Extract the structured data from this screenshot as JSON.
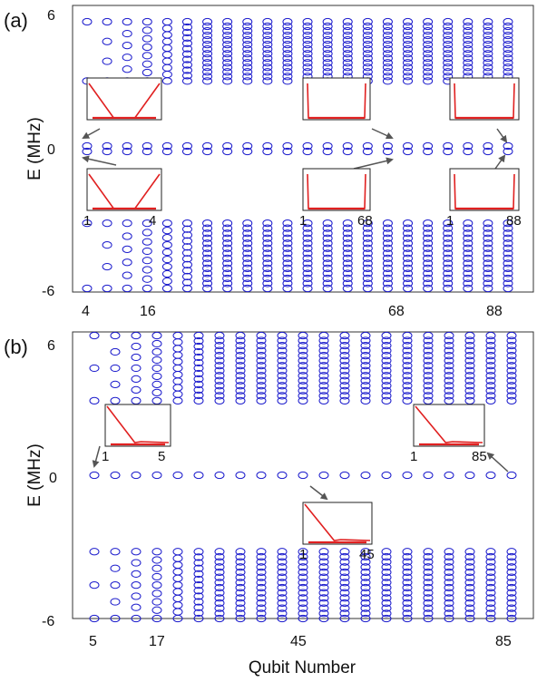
{
  "chart_data": [
    {
      "type": "scatter",
      "panel_label": "(a)",
      "ylabel": "E (MHz)",
      "xlabel": "",
      "y_ticks": [
        "6",
        "0",
        "-6"
      ],
      "ylim": [
        -6,
        6
      ],
      "x_ticks": [
        "4",
        "16",
        "68",
        "88"
      ],
      "x_columns": [
        4,
        8,
        12,
        16,
        20,
        24,
        28,
        32,
        36,
        40,
        44,
        48,
        52,
        56,
        60,
        64,
        68,
        72,
        76,
        80,
        84,
        88
      ],
      "band_min_abs_E": 3.2,
      "band_max_abs_E": 6.0,
      "zero_mode_E": 0,
      "zero_mode_count_per_column": 2,
      "marker_color": "#1a1acc",
      "insets": [
        {
          "qubits": 4,
          "tick_labels": [
            "",
            ""
          ],
          "position": "upper",
          "shape": "bowl"
        },
        {
          "qubits": 4,
          "tick_labels": [
            "1",
            "4"
          ],
          "position": "lower",
          "shape": "bowl"
        },
        {
          "qubits": 68,
          "tick_labels": [
            "",
            ""
          ],
          "position": "upper",
          "shape": "edges"
        },
        {
          "qubits": 68,
          "tick_labels": [
            "1",
            "68"
          ],
          "position": "lower",
          "shape": "edges"
        },
        {
          "qubits": 88,
          "tick_labels": [
            "",
            ""
          ],
          "position": "upper",
          "shape": "edges"
        },
        {
          "qubits": 88,
          "tick_labels": [
            "1",
            "88"
          ],
          "position": "lower",
          "shape": "edges"
        }
      ]
    },
    {
      "type": "scatter",
      "panel_label": "(b)",
      "ylabel": "E (MHz)",
      "xlabel": "Qubit Number",
      "y_ticks": [
        "6",
        "0",
        "-6"
      ],
      "ylim": [
        -6,
        6
      ],
      "x_ticks": [
        "5",
        "17",
        "45",
        "85"
      ],
      "x_columns": [
        5,
        9,
        13,
        17,
        21,
        25,
        29,
        33,
        37,
        41,
        45,
        49,
        53,
        57,
        61,
        65,
        69,
        73,
        77,
        81,
        85
      ],
      "band_min_abs_E": 3.2,
      "band_max_abs_E": 6.0,
      "zero_mode_E": 0,
      "zero_mode_count_per_column": 1,
      "marker_color": "#1a1acc",
      "insets": [
        {
          "qubits": 5,
          "tick_labels": [
            "1",
            "5"
          ],
          "position": "upper",
          "shape": "left-edge"
        },
        {
          "qubits": 85,
          "tick_labels": [
            "1",
            "85"
          ],
          "position": "upper",
          "shape": "left-edge"
        },
        {
          "qubits": 45,
          "tick_labels": [
            "1",
            "45"
          ],
          "position": "lower",
          "shape": "left-edge"
        }
      ]
    }
  ]
}
